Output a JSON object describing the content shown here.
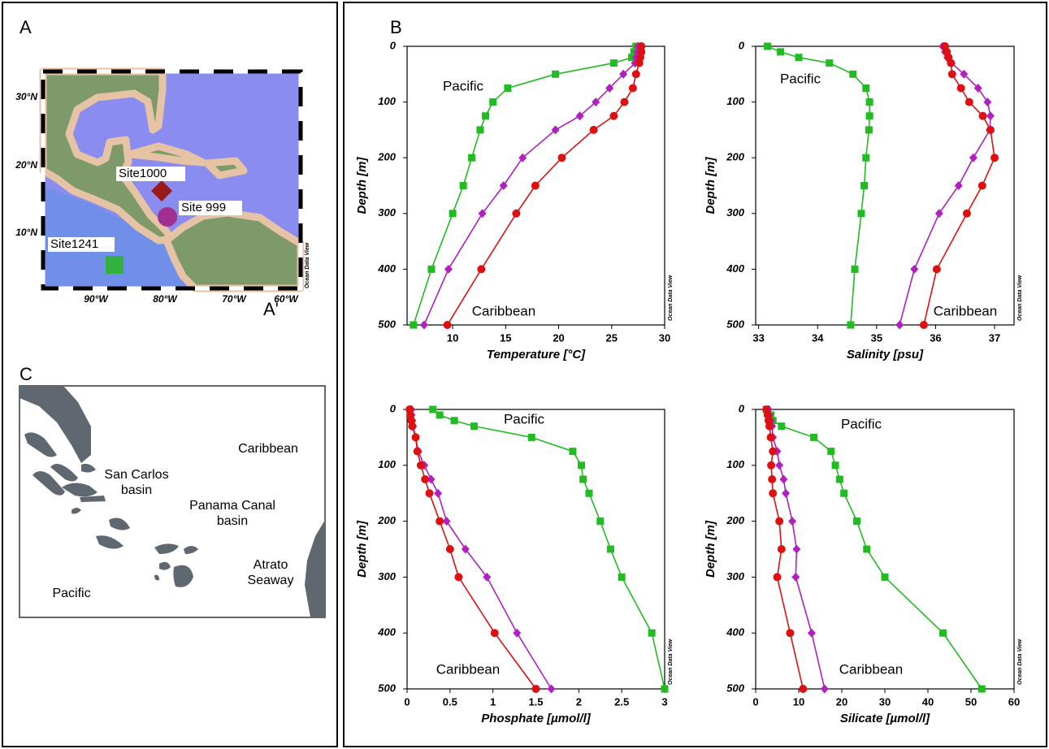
{
  "panels": {
    "a": "A",
    "b": "B",
    "c": "C"
  },
  "map": {
    "lat_labels": [
      "30°N",
      "20°N",
      "10°N"
    ],
    "lon_labels": [
      "90°W",
      "80°W",
      "70°W",
      "60°W"
    ],
    "sites": [
      "Site1000",
      "Site 999",
      "Site1241"
    ],
    "section_label": "A'",
    "watermark": "Ocean Data View"
  },
  "schematic": {
    "labels": [
      [
        "Caribbean"
      ],
      [
        "San Carlos",
        "basin"
      ],
      [
        "Panama Canal",
        "basin"
      ],
      [
        "Atrato",
        "Seaway"
      ],
      [
        "Pacific"
      ]
    ]
  },
  "chart_data": [
    {
      "type": "line",
      "x_label": "Temperature [°C]",
      "y_label": "Depth [m]",
      "y": [
        0,
        10,
        20,
        30,
        50,
        75,
        100,
        125,
        150,
        200,
        250,
        300,
        400,
        500
      ],
      "ylim": [
        0,
        500
      ],
      "y_reversed": true,
      "yticks": [
        0,
        100,
        200,
        300,
        400,
        500
      ],
      "xlim": [
        5.7,
        30
      ],
      "xticks": [
        10,
        15,
        20,
        25,
        30
      ],
      "series": [
        {
          "color": "#22bb22",
          "marker": "square",
          "values": [
            27.3,
            27.1,
            26.9,
            25.2,
            19.7,
            15.2,
            13.8,
            13.1,
            12.6,
            11.8,
            11.0,
            10.0,
            8.0,
            6.3
          ]
        },
        {
          "color": "#b020c0",
          "marker": "diamond",
          "values": [
            27.5,
            27.4,
            27.3,
            27.2,
            26.1,
            24.8,
            23.5,
            22.0,
            19.7,
            16.6,
            14.8,
            12.8,
            9.6,
            7.3
          ]
        },
        {
          "color": "#dd1111",
          "marker": "circle",
          "values": [
            27.8,
            27.8,
            27.7,
            27.6,
            27.3,
            27.0,
            26.2,
            25.2,
            23.3,
            20.3,
            17.8,
            16.0,
            12.7,
            9.5
          ]
        }
      ],
      "annotations": [
        "Pacific",
        "Caribbean"
      ],
      "watermark": "Ocean Data View"
    },
    {
      "type": "line",
      "x_label": "Salinity [psu]",
      "y_label": "Depth [m]",
      "y": [
        0,
        10,
        20,
        30,
        50,
        75,
        100,
        125,
        150,
        200,
        250,
        300,
        400,
        500
      ],
      "ylim": [
        0,
        500
      ],
      "y_reversed": true,
      "yticks": [
        0,
        100,
        200,
        300,
        400,
        500
      ],
      "xlim": [
        32.95,
        37.33
      ],
      "xticks": [
        33,
        34,
        35,
        36,
        37
      ],
      "series": [
        {
          "color": "#22bb22",
          "marker": "square",
          "values": [
            33.15,
            33.37,
            33.68,
            34.2,
            34.6,
            34.82,
            34.88,
            34.88,
            34.87,
            34.82,
            34.79,
            34.74,
            34.63,
            34.56
          ]
        },
        {
          "color": "#b020c0",
          "marker": "diamond",
          "values": [
            36.12,
            36.16,
            36.2,
            36.27,
            36.48,
            36.72,
            36.88,
            36.93,
            36.92,
            36.64,
            36.39,
            36.06,
            35.64,
            35.39
          ]
        },
        {
          "color": "#dd1111",
          "marker": "circle",
          "values": [
            36.16,
            36.19,
            36.22,
            36.26,
            36.28,
            36.43,
            36.57,
            36.8,
            36.93,
            37.0,
            36.79,
            36.53,
            36.02,
            35.8
          ]
        }
      ],
      "annotations": [
        "Pacific",
        "Caribbean"
      ],
      "watermark": "Ocean Data View"
    },
    {
      "type": "line",
      "x_label": "Phosphate [µmol/l]",
      "y_label": "Depth [m]",
      "y": [
        0,
        10,
        20,
        30,
        50,
        75,
        100,
        125,
        150,
        200,
        250,
        300,
        400,
        500
      ],
      "ylim": [
        0,
        500
      ],
      "y_reversed": true,
      "yticks": [
        0,
        100,
        200,
        300,
        400,
        500
      ],
      "xlim": [
        0,
        3
      ],
      "xticks": [
        0,
        0.5,
        1,
        1.5,
        2,
        2.5,
        3
      ],
      "series": [
        {
          "color": "#22bb22",
          "marker": "square",
          "values": [
            0.3,
            0.38,
            0.55,
            0.78,
            1.45,
            1.93,
            2.03,
            2.05,
            2.12,
            2.25,
            2.37,
            2.5,
            2.85,
            3.0
          ]
        },
        {
          "color": "#b020c0",
          "marker": "diamond",
          "values": [
            0.05,
            0.05,
            0.06,
            0.07,
            0.1,
            0.13,
            0.2,
            0.28,
            0.36,
            0.46,
            0.68,
            0.93,
            1.28,
            1.68
          ]
        },
        {
          "color": "#dd1111",
          "marker": "circle",
          "values": [
            0.03,
            0.04,
            0.05,
            0.06,
            0.1,
            0.12,
            0.16,
            0.21,
            0.26,
            0.38,
            0.5,
            0.6,
            1.02,
            1.5
          ]
        }
      ],
      "annotations": [
        "Pacific",
        "Caribbean"
      ],
      "watermark": "Ocean Data View"
    },
    {
      "type": "line",
      "x_label": "Silicate [µmol/l]",
      "y_label": "Depth [m]",
      "y": [
        0,
        10,
        20,
        30,
        50,
        75,
        100,
        125,
        150,
        200,
        250,
        300,
        400,
        500
      ],
      "ylim": [
        0,
        500
      ],
      "y_reversed": true,
      "yticks": [
        0,
        100,
        200,
        300,
        400,
        500
      ],
      "xlim": [
        0,
        60
      ],
      "xticks": [
        0,
        10,
        20,
        30,
        40,
        50,
        60
      ],
      "series": [
        {
          "color": "#22bb22",
          "marker": "square",
          "values": [
            2.5,
            3.5,
            4.0,
            6.0,
            13.5,
            17.5,
            18.5,
            19.5,
            20.5,
            23.5,
            25.8,
            30,
            43.5,
            52.5
          ]
        },
        {
          "color": "#b020c0",
          "marker": "diamond",
          "values": [
            3,
            3.2,
            3.5,
            3.8,
            4,
            5,
            5.5,
            6.5,
            7,
            8.5,
            9.5,
            9.3,
            13,
            16
          ]
        },
        {
          "color": "#dd1111",
          "marker": "circle",
          "values": [
            2.5,
            2.8,
            3,
            3.2,
            3.5,
            4,
            3.6,
            3.8,
            4,
            5.5,
            6,
            5,
            8,
            11
          ]
        }
      ],
      "annotations": [
        "Pacific",
        "Caribbean"
      ],
      "watermark": "Ocean Data View"
    }
  ]
}
